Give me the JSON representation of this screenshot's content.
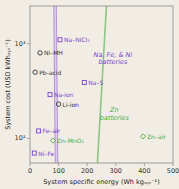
{
  "chart_data": {
    "type": "scatter",
    "log": "y",
    "grid": false,
    "xlabel": "System specific energy (Wh kgₛᵧₛ⁻¹)",
    "ylabel": "System cost (USD kWhₛᵧₛ⁻¹)",
    "xlim": [
      0,
      500
    ],
    "ylim": [
      55,
      2500
    ],
    "xticks": [
      0,
      100,
      200,
      300,
      400,
      500
    ],
    "yticks": [
      {
        "value": 100,
        "label": "10²"
      },
      {
        "value": 1000,
        "label": "10³"
      }
    ],
    "background": "#F2EDE4",
    "series": [
      {
        "color": "#7744CC",
        "marker": "square",
        "x": [
          105,
          190,
          70,
          30,
          15
        ],
        "values": [
          1100,
          390,
          290,
          120,
          70
        ],
        "labels": [
          "Na–NiCl₂",
          "Na–S",
          "Na-ion",
          "Fe–air",
          "Ni–Fe"
        ]
      },
      {
        "color": "#333333",
        "marker": "circle",
        "x": [
          35,
          18,
          100
        ],
        "values": [
          800,
          500,
          230
        ],
        "labels": [
          "Ni–MH",
          "Pb-acid",
          "Li-ion"
        ]
      },
      {
        "color": "#44AA44",
        "marker": "diamond",
        "x": [
          80,
          395
        ],
        "values": [
          95,
          105
        ],
        "labels": [
          "Zn–MnO₂",
          "Zn–air"
        ]
      }
    ],
    "ellipses": [
      {
        "cx": 90,
        "cy": 420,
        "width": 220,
        "height_decades": 2.8,
        "angle": -18,
        "color": "#7744CC",
        "fill": "#C8A8F0"
      },
      {
        "cx": 240,
        "cy": 92,
        "width": 400,
        "height_decades": 0.136,
        "angle": 3,
        "color": "#44AA44",
        "fill": "#AADDAA"
      }
    ],
    "annotations": [
      {
        "x": 290,
        "y": 700,
        "text": "Na, Fe, & Ni\n  batteries",
        "color": "#7744CC"
      },
      {
        "x": 295,
        "y": 180,
        "text": "Zn\n batteries",
        "color": "#44AA44"
      }
    ]
  }
}
